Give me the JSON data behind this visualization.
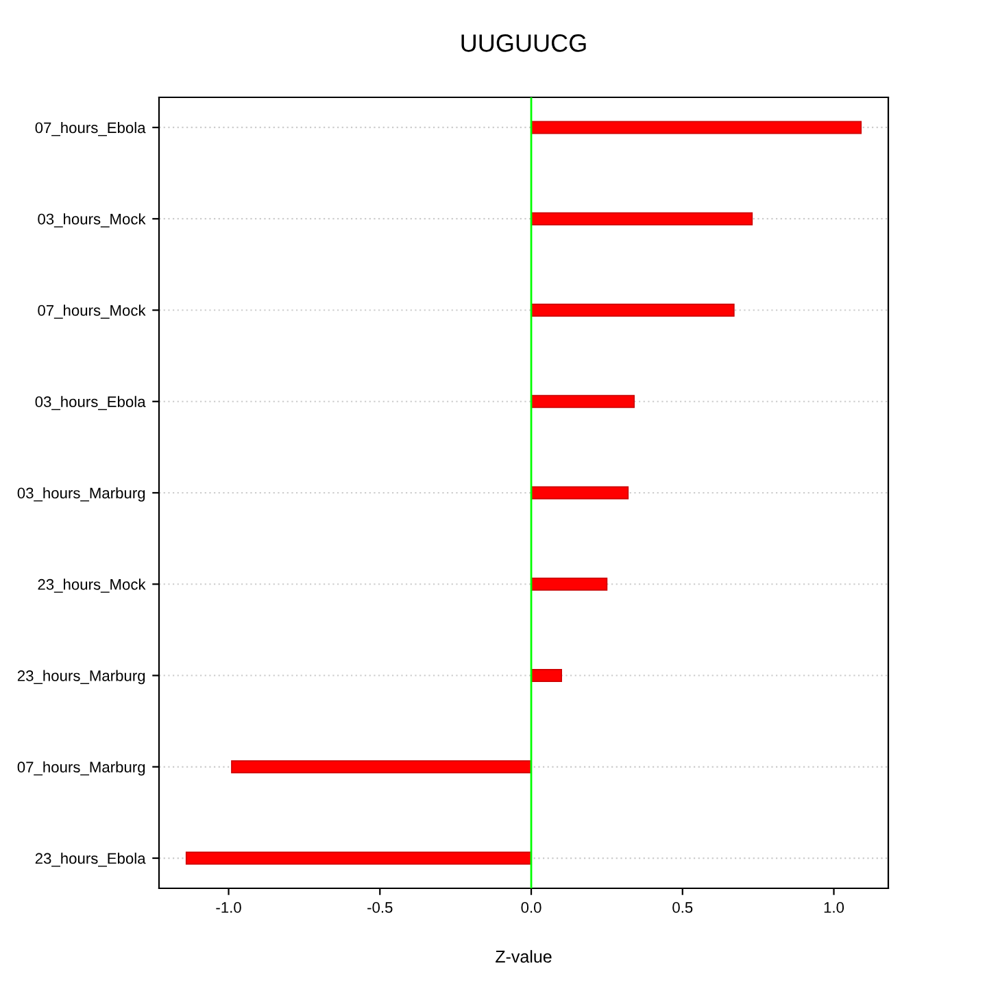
{
  "chart_data": {
    "type": "bar",
    "orientation": "horizontal",
    "title": "UUGUUCG",
    "xlabel": "Z-value",
    "categories": [
      "07_hours_Ebola",
      "03_hours_Mock",
      "07_hours_Mock",
      "03_hours_Ebola",
      "03_hours_Marburg",
      "23_hours_Mock",
      "23_hours_Marburg",
      "07_hours_Marburg",
      "23_hours_Ebola"
    ],
    "values": [
      1.09,
      0.73,
      0.67,
      0.34,
      0.32,
      0.25,
      0.1,
      -0.99,
      -1.14
    ],
    "color": "#ff0000",
    "xlim": [
      -1.23,
      1.18
    ],
    "xticks": [
      {
        "value": -1,
        "label": "-1.0"
      },
      -0.5,
      {
        "value": 0,
        "label": "0.0"
      },
      0.5,
      {
        "value": 1,
        "label": "1.0"
      }
    ],
    "ref_lines": [
      {
        "axis": "x",
        "value": 0,
        "color": "#00ff00"
      }
    ],
    "grid": "y"
  }
}
